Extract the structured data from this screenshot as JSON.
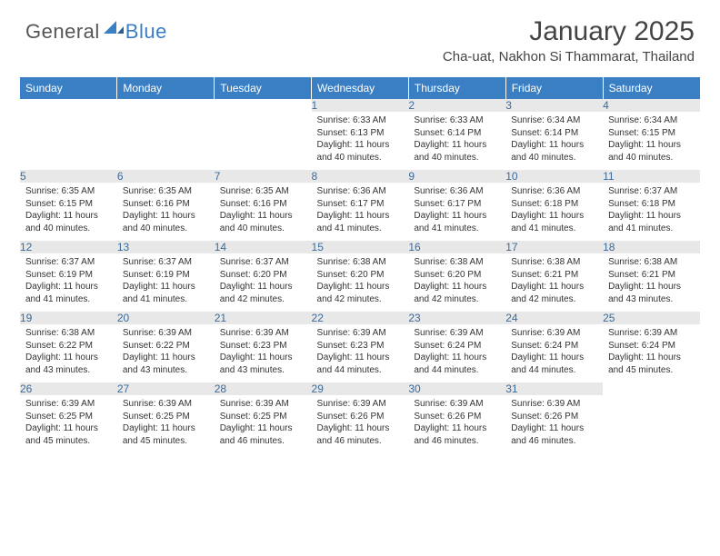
{
  "logo": {
    "general": "General",
    "blue": "Blue"
  },
  "title": "January 2025",
  "location": "Cha-uat, Nakhon Si Thammarat, Thailand",
  "colors": {
    "header_bg": "#3a7fc4",
    "header_text": "#ffffff",
    "daynum_bg": "#e8e8e8",
    "daynum_text": "#3a6a9a",
    "body_text": "#333333",
    "page_bg": "#ffffff"
  },
  "typography": {
    "title_fontsize": 30,
    "location_fontsize": 15,
    "header_fontsize": 12,
    "daynum_fontsize": 12,
    "cell_fontsize": 10
  },
  "day_headers": [
    "Sunday",
    "Monday",
    "Tuesday",
    "Wednesday",
    "Thursday",
    "Friday",
    "Saturday"
  ],
  "weeks": [
    [
      {
        "n": "",
        "sr": "",
        "ss": "",
        "dl": ""
      },
      {
        "n": "",
        "sr": "",
        "ss": "",
        "dl": ""
      },
      {
        "n": "",
        "sr": "",
        "ss": "",
        "dl": ""
      },
      {
        "n": "1",
        "sr": "6:33 AM",
        "ss": "6:13 PM",
        "dl": "11 hours and 40 minutes."
      },
      {
        "n": "2",
        "sr": "6:33 AM",
        "ss": "6:14 PM",
        "dl": "11 hours and 40 minutes."
      },
      {
        "n": "3",
        "sr": "6:34 AM",
        "ss": "6:14 PM",
        "dl": "11 hours and 40 minutes."
      },
      {
        "n": "4",
        "sr": "6:34 AM",
        "ss": "6:15 PM",
        "dl": "11 hours and 40 minutes."
      }
    ],
    [
      {
        "n": "5",
        "sr": "6:35 AM",
        "ss": "6:15 PM",
        "dl": "11 hours and 40 minutes."
      },
      {
        "n": "6",
        "sr": "6:35 AM",
        "ss": "6:16 PM",
        "dl": "11 hours and 40 minutes."
      },
      {
        "n": "7",
        "sr": "6:35 AM",
        "ss": "6:16 PM",
        "dl": "11 hours and 40 minutes."
      },
      {
        "n": "8",
        "sr": "6:36 AM",
        "ss": "6:17 PM",
        "dl": "11 hours and 41 minutes."
      },
      {
        "n": "9",
        "sr": "6:36 AM",
        "ss": "6:17 PM",
        "dl": "11 hours and 41 minutes."
      },
      {
        "n": "10",
        "sr": "6:36 AM",
        "ss": "6:18 PM",
        "dl": "11 hours and 41 minutes."
      },
      {
        "n": "11",
        "sr": "6:37 AM",
        "ss": "6:18 PM",
        "dl": "11 hours and 41 minutes."
      }
    ],
    [
      {
        "n": "12",
        "sr": "6:37 AM",
        "ss": "6:19 PM",
        "dl": "11 hours and 41 minutes."
      },
      {
        "n": "13",
        "sr": "6:37 AM",
        "ss": "6:19 PM",
        "dl": "11 hours and 41 minutes."
      },
      {
        "n": "14",
        "sr": "6:37 AM",
        "ss": "6:20 PM",
        "dl": "11 hours and 42 minutes."
      },
      {
        "n": "15",
        "sr": "6:38 AM",
        "ss": "6:20 PM",
        "dl": "11 hours and 42 minutes."
      },
      {
        "n": "16",
        "sr": "6:38 AM",
        "ss": "6:20 PM",
        "dl": "11 hours and 42 minutes."
      },
      {
        "n": "17",
        "sr": "6:38 AM",
        "ss": "6:21 PM",
        "dl": "11 hours and 42 minutes."
      },
      {
        "n": "18",
        "sr": "6:38 AM",
        "ss": "6:21 PM",
        "dl": "11 hours and 43 minutes."
      }
    ],
    [
      {
        "n": "19",
        "sr": "6:38 AM",
        "ss": "6:22 PM",
        "dl": "11 hours and 43 minutes."
      },
      {
        "n": "20",
        "sr": "6:39 AM",
        "ss": "6:22 PM",
        "dl": "11 hours and 43 minutes."
      },
      {
        "n": "21",
        "sr": "6:39 AM",
        "ss": "6:23 PM",
        "dl": "11 hours and 43 minutes."
      },
      {
        "n": "22",
        "sr": "6:39 AM",
        "ss": "6:23 PM",
        "dl": "11 hours and 44 minutes."
      },
      {
        "n": "23",
        "sr": "6:39 AM",
        "ss": "6:24 PM",
        "dl": "11 hours and 44 minutes."
      },
      {
        "n": "24",
        "sr": "6:39 AM",
        "ss": "6:24 PM",
        "dl": "11 hours and 44 minutes."
      },
      {
        "n": "25",
        "sr": "6:39 AM",
        "ss": "6:24 PM",
        "dl": "11 hours and 45 minutes."
      }
    ],
    [
      {
        "n": "26",
        "sr": "6:39 AM",
        "ss": "6:25 PM",
        "dl": "11 hours and 45 minutes."
      },
      {
        "n": "27",
        "sr": "6:39 AM",
        "ss": "6:25 PM",
        "dl": "11 hours and 45 minutes."
      },
      {
        "n": "28",
        "sr": "6:39 AM",
        "ss": "6:25 PM",
        "dl": "11 hours and 46 minutes."
      },
      {
        "n": "29",
        "sr": "6:39 AM",
        "ss": "6:26 PM",
        "dl": "11 hours and 46 minutes."
      },
      {
        "n": "30",
        "sr": "6:39 AM",
        "ss": "6:26 PM",
        "dl": "11 hours and 46 minutes."
      },
      {
        "n": "31",
        "sr": "6:39 AM",
        "ss": "6:26 PM",
        "dl": "11 hours and 46 minutes."
      },
      {
        "n": "",
        "sr": "",
        "ss": "",
        "dl": ""
      }
    ]
  ],
  "labels": {
    "sunrise": "Sunrise:",
    "sunset": "Sunset:",
    "daylight": "Daylight:"
  }
}
